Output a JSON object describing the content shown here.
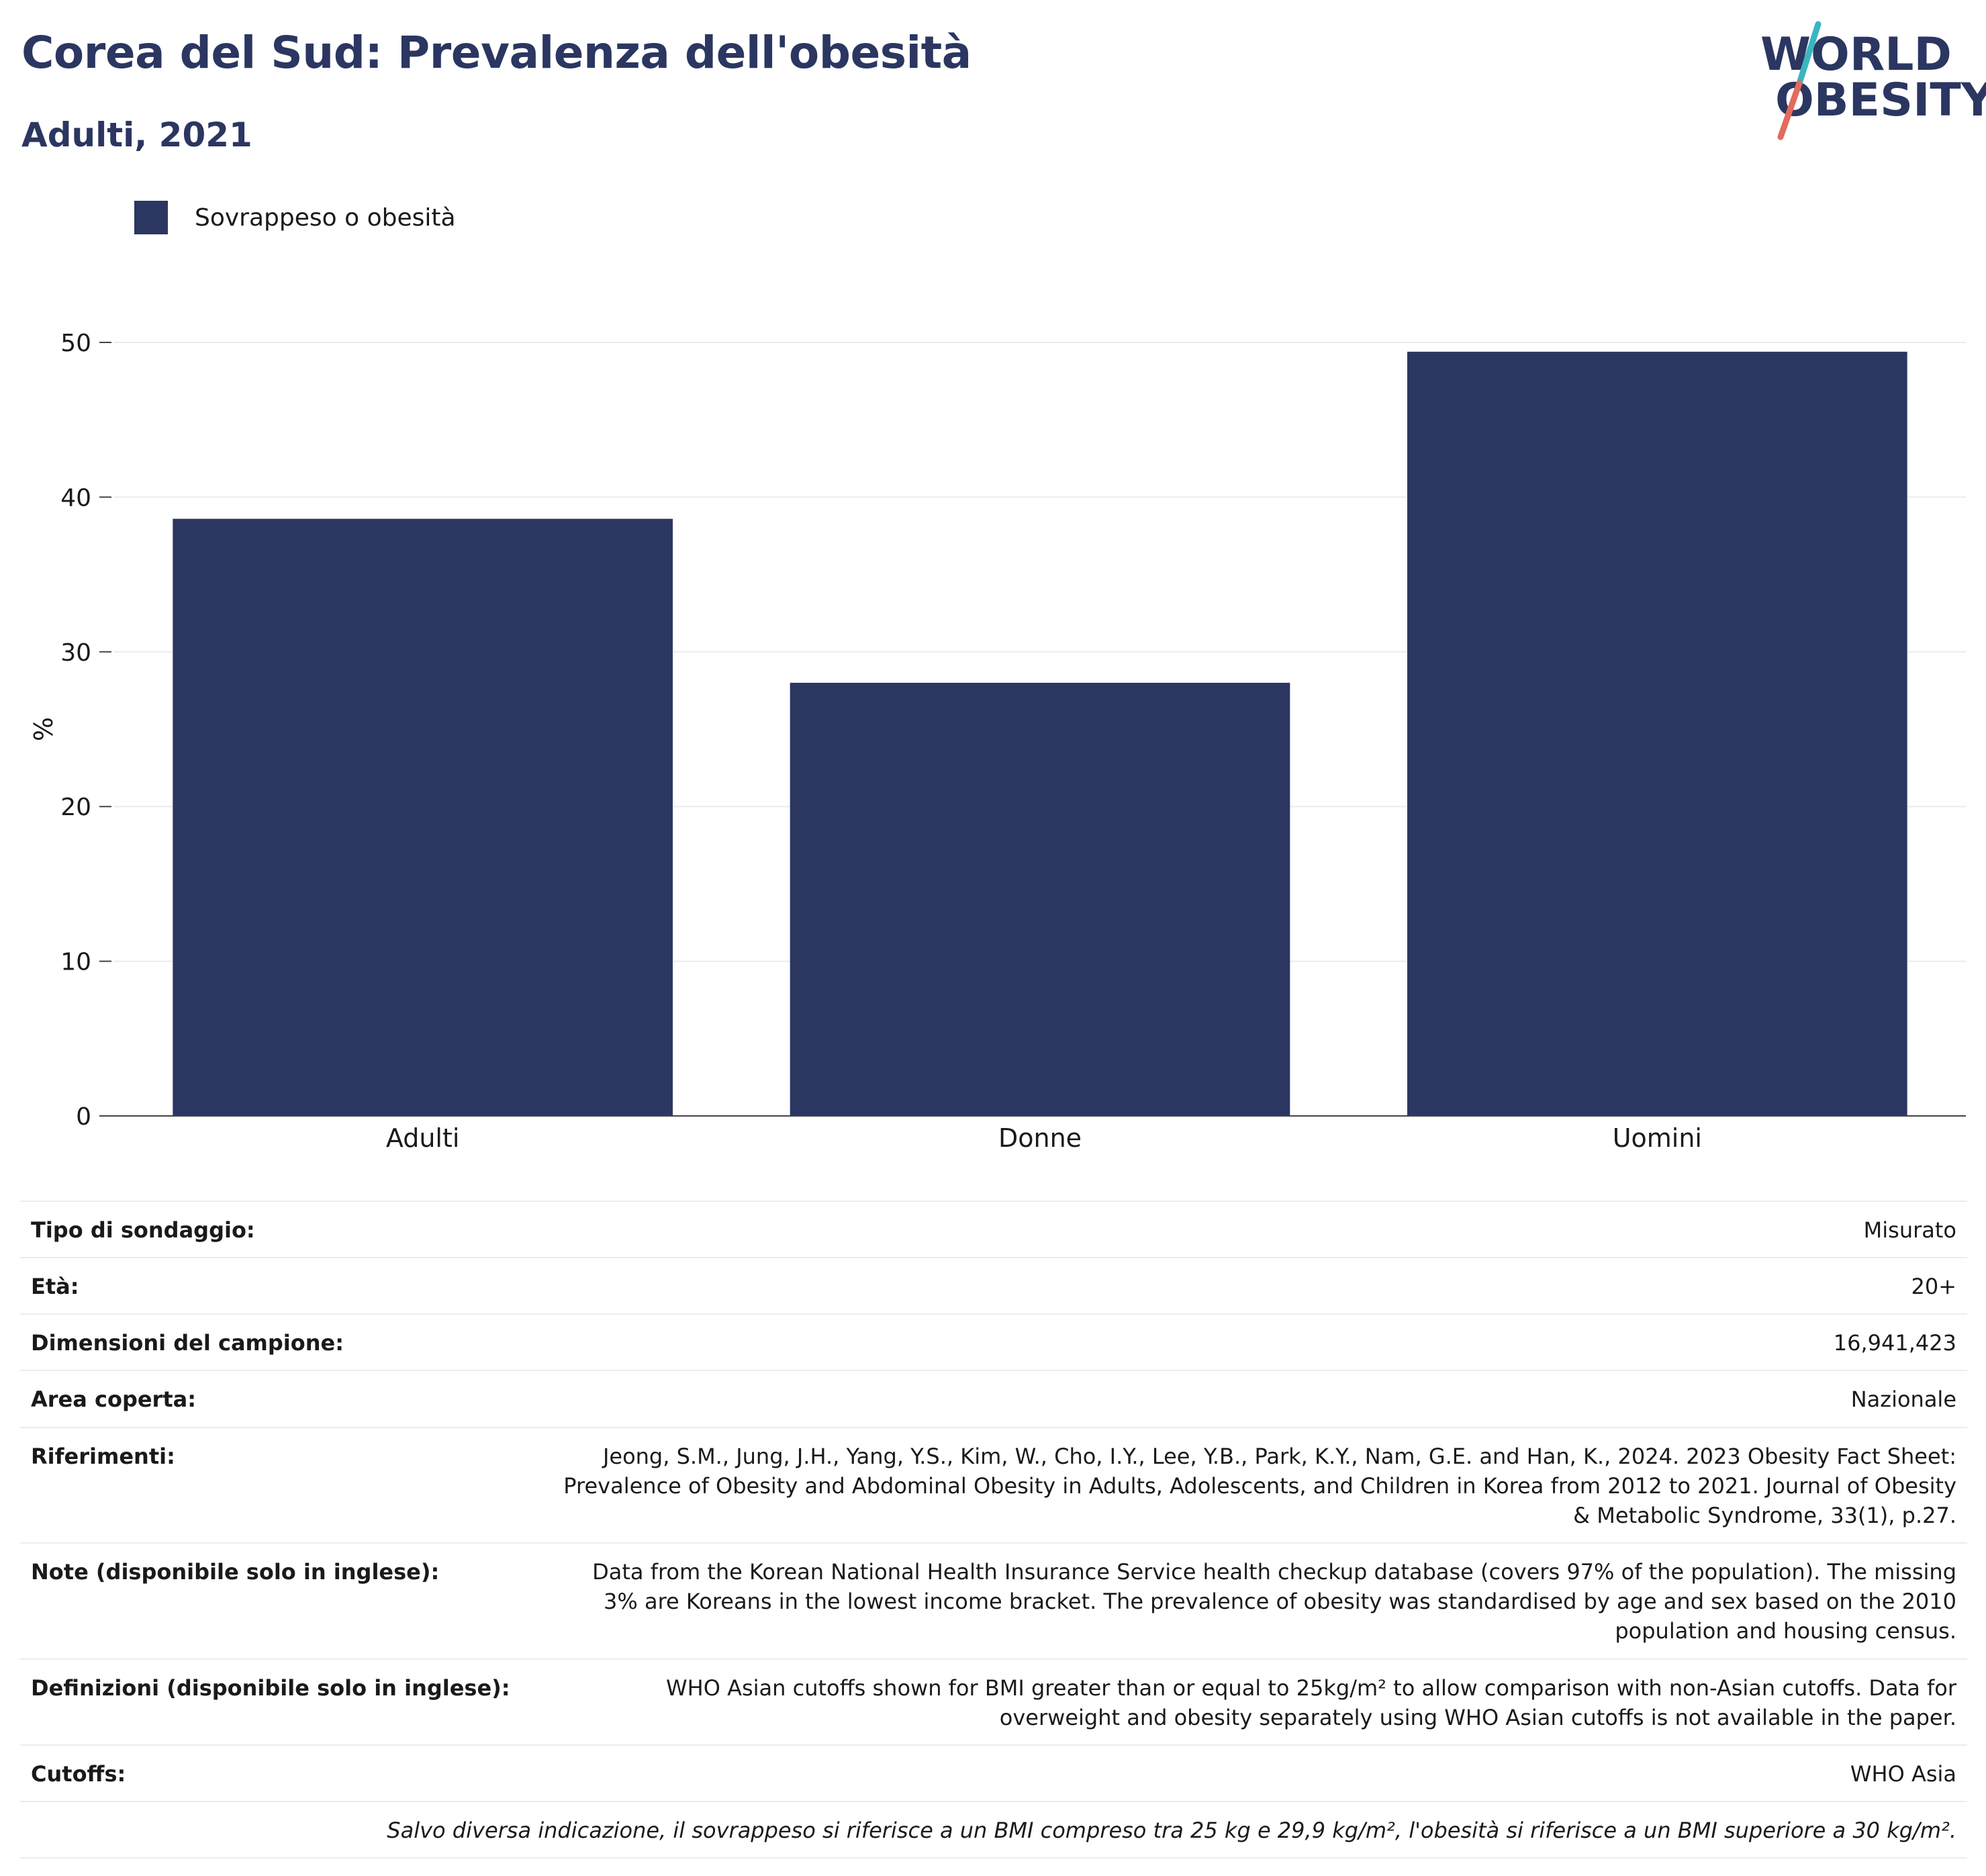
{
  "header": {
    "title": "Corea del Sud: Prevalenza dell'obesità",
    "subtitle": "Adulti, 2021"
  },
  "logo": {
    "line1": "WORLD",
    "line2": "OBESITY",
    "accent_colors": [
      "#3bb5c1",
      "#e36b5c"
    ]
  },
  "legend": {
    "label": "Sovrappeso o obesità",
    "color": "#2b3661"
  },
  "chart_data": {
    "type": "bar",
    "categories": [
      "Adulti",
      "Donne",
      "Uomini"
    ],
    "series": [
      {
        "name": "Sovrappeso o obesità",
        "values": [
          38.6,
          28.0,
          49.4
        ]
      }
    ],
    "ylabel": "%",
    "ylim": [
      0,
      50
    ],
    "yticks": [
      0,
      10,
      20,
      30,
      40,
      50
    ],
    "grid": true,
    "bar_color": "#2b3661",
    "legend_position": "top-left"
  },
  "info": {
    "rows": [
      {
        "label": "Tipo di sondaggio:",
        "value": "Misurato"
      },
      {
        "label": "Età:",
        "value": "20+"
      },
      {
        "label": "Dimensioni del campione:",
        "value": "16,941,423"
      },
      {
        "label": "Area coperta:",
        "value": "Nazionale"
      },
      {
        "label": "Riferimenti:",
        "value": "Jeong, S.M., Jung, J.H., Yang, Y.S., Kim, W., Cho, I.Y., Lee, Y.B., Park, K.Y., Nam, G.E. and Han, K., 2024. 2023 Obesity Fact Sheet: Prevalence of Obesity and Abdominal Obesity in Adults, Adolescents, and Children in Korea from 2012 to 2021. Journal of Obesity & Metabolic Syndrome, 33(1), p.27."
      },
      {
        "label": "Note (disponibile solo in inglese):",
        "value": "Data from the Korean National Health Insurance Service health checkup database (covers 97% of the population). The missing 3% are Koreans in the lowest income bracket. The prevalence of obesity was standardised by age and sex based on the 2010 population and housing census."
      },
      {
        "label": "Definizioni (disponibile solo in inglese):",
        "value": "WHO Asian cutoffs shown for BMI greater than or equal to 25kg/m² to allow comparison with non-Asian cutoffs. Data for overweight and obesity separately using WHO Asian cutoffs is not available in the paper."
      },
      {
        "label": "Cutoffs:",
        "value": "WHO Asia"
      }
    ],
    "footnote": "Salvo diversa indicazione, il sovrappeso si riferisce a un BMI compreso tra 25 kg e 29,9 kg/m², l'obesità si riferisce a un BMI superiore a 30 kg/m²."
  }
}
